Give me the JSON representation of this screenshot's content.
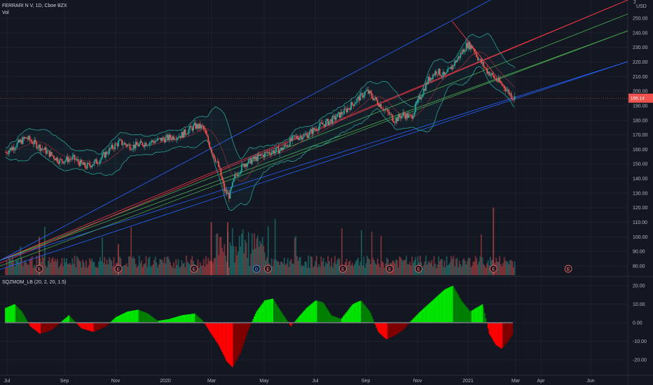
{
  "legend": {
    "symbol_line": "FERRARI N V, 1D, Cboe BZX",
    "volume_label": "Vol",
    "indicator_label": "SQZMOM_LB (20, 2, 20, 1.5)"
  },
  "price_axis": {
    "currency": "USD",
    "ticks": [
      "250.00",
      "240.00",
      "230.00",
      "220.00",
      "210.00",
      "200.00",
      "190.00",
      "180.00",
      "170.00",
      "160.00",
      "150.00",
      "140.00",
      "130.00",
      "120.00",
      "110.00",
      "100.00",
      "90.00",
      "80.00"
    ],
    "current_price": 195.14,
    "top_partial": "2"
  },
  "indicator_axis": {
    "ticks": [
      "20.00",
      "10.00",
      "0.00",
      "-10.00",
      "-20.00"
    ]
  },
  "time_axis": {
    "ticks": [
      "Jul",
      "Sep",
      "Nov",
      "2020",
      "Mar",
      "May",
      "Jul",
      "Sep",
      "Nov",
      "2021",
      "Mar",
      "Apr",
      "Jun"
    ]
  },
  "events": [
    {
      "label": "E",
      "kind": "earnings",
      "date": "2019-07-31"
    },
    {
      "label": "E",
      "kind": "earnings",
      "date": "2019-11-04"
    },
    {
      "label": "E",
      "kind": "earnings",
      "date": "2020-02-04"
    },
    {
      "label": "D",
      "kind": "dividend",
      "date": "2020-04-20"
    },
    {
      "label": "E",
      "kind": "earnings",
      "date": "2020-05-04"
    },
    {
      "label": "E",
      "kind": "earnings",
      "date": "2020-08-03"
    },
    {
      "label": "E",
      "kind": "earnings",
      "date": "2020-09-29"
    },
    {
      "label": "E",
      "kind": "earnings",
      "date": "2020-11-03"
    },
    {
      "label": "E",
      "kind": "earnings",
      "date": "2021-02-02"
    },
    {
      "label": "E",
      "kind": "earnings",
      "date": "2021-05-04"
    }
  ],
  "colors": {
    "background": "#131722",
    "up": "#26a69a",
    "down": "#ef5350",
    "vol_up": "#26a69a",
    "vol_down": "#ef5350",
    "bollinger": "#2aa198",
    "fan_blue": "#2962ff",
    "fan_green": "#4caf50",
    "fan_red": "#f23645",
    "hist_green_strong": "#00e600",
    "hist_green_weak": "#008000",
    "hist_red_strong": "#ff0000",
    "hist_red_weak": "#800000",
    "grid": "#1e222d",
    "price_tag": "#ef5350"
  },
  "chart_data": [
    {
      "type": "line",
      "subtype": "candlestick",
      "title": "FERRARI N V, 1D, Cboe BZX",
      "ylim": [
        75,
        260
      ],
      "x_range": [
        "2019-06-20",
        "2021-06-30"
      ],
      "series": [
        {
          "name": "",
          "points": [
            [
              "2019-06-20",
              158
            ],
            [
              "2019-07-15",
              168
            ],
            [
              "2019-08-05",
              160
            ],
            [
              "2019-08-25",
              152
            ],
            [
              "2019-09-10",
              154
            ],
            [
              "2019-09-25",
              148
            ],
            [
              "2019-10-10",
              152
            ],
            [
              "2019-10-25",
              160
            ],
            [
              "2019-11-05",
              165
            ],
            [
              "2019-11-20",
              162
            ],
            [
              "2019-12-05",
              164
            ],
            [
              "2019-12-20",
              166
            ],
            [
              "2020-01-05",
              168
            ],
            [
              "2020-01-20",
              170
            ],
            [
              "2020-02-05",
              176
            ],
            [
              "2020-02-15",
              175
            ],
            [
              "2020-02-25",
              160
            ],
            [
              "2020-03-05",
              148
            ],
            [
              "2020-03-12",
              132
            ],
            [
              "2020-03-18",
              128
            ],
            [
              "2020-03-25",
              142
            ],
            [
              "2020-04-05",
              150
            ],
            [
              "2020-04-20",
              154
            ],
            [
              "2020-05-05",
              158
            ],
            [
              "2020-05-20",
              160
            ],
            [
              "2020-06-05",
              168
            ],
            [
              "2020-06-20",
              170
            ],
            [
              "2020-07-05",
              176
            ],
            [
              "2020-07-20",
              180
            ],
            [
              "2020-08-05",
              186
            ],
            [
              "2020-08-20",
              194
            ],
            [
              "2020-09-01",
              200
            ],
            [
              "2020-09-15",
              192
            ],
            [
              "2020-09-25",
              186
            ],
            [
              "2020-10-05",
              180
            ],
            [
              "2020-10-15",
              184
            ],
            [
              "2020-10-25",
              182
            ],
            [
              "2020-11-05",
              196
            ],
            [
              "2020-11-15",
              208
            ],
            [
              "2020-11-25",
              214
            ],
            [
              "2020-12-05",
              210
            ],
            [
              "2020-12-15",
              218
            ],
            [
              "2020-12-25",
              226
            ],
            [
              "2021-01-01",
              232
            ],
            [
              "2021-01-08",
              230
            ],
            [
              "2021-01-15",
              222
            ],
            [
              "2021-01-25",
              214
            ],
            [
              "2021-02-05",
              208
            ],
            [
              "2021-02-15",
              203
            ],
            [
              "2021-02-25",
              196
            ],
            [
              "2021-03-01",
              195
            ]
          ]
        }
      ],
      "volume_peak": 120,
      "ylabel": ""
    },
    {
      "type": "bar",
      "title": "SQZMOM_LB (20, 2, 20, 1.5)",
      "ylim": [
        -25,
        22
      ],
      "series": [
        {
          "name": "",
          "points": [
            [
              "2019-06-20",
              8
            ],
            [
              "2019-07-01",
              10
            ],
            [
              "2019-07-10",
              6
            ],
            [
              "2019-07-20",
              -2
            ],
            [
              "2019-08-01",
              -6
            ],
            [
              "2019-08-15",
              -4
            ],
            [
              "2019-08-28",
              1
            ],
            [
              "2019-09-05",
              4
            ],
            [
              "2019-09-20",
              -3
            ],
            [
              "2019-10-05",
              -5
            ],
            [
              "2019-10-20",
              -2
            ],
            [
              "2019-11-01",
              3
            ],
            [
              "2019-11-15",
              6
            ],
            [
              "2019-11-28",
              7
            ],
            [
              "2019-12-10",
              5
            ],
            [
              "2019-12-22",
              1
            ],
            [
              "2020-01-05",
              2
            ],
            [
              "2020-01-20",
              4
            ],
            [
              "2020-02-05",
              5
            ],
            [
              "2020-02-15",
              1
            ],
            [
              "2020-02-25",
              -6
            ],
            [
              "2020-03-05",
              -12
            ],
            [
              "2020-03-15",
              -21
            ],
            [
              "2020-03-22",
              -24
            ],
            [
              "2020-04-01",
              -16
            ],
            [
              "2020-04-10",
              -4
            ],
            [
              "2020-04-20",
              6
            ],
            [
              "2020-04-30",
              12
            ],
            [
              "2020-05-10",
              13
            ],
            [
              "2020-05-20",
              6
            ],
            [
              "2020-06-01",
              -2
            ],
            [
              "2020-06-10",
              3
            ],
            [
              "2020-06-20",
              8
            ],
            [
              "2020-07-01",
              12
            ],
            [
              "2020-07-10",
              11
            ],
            [
              "2020-07-20",
              4
            ],
            [
              "2020-08-01",
              2
            ],
            [
              "2020-08-15",
              10
            ],
            [
              "2020-08-25",
              12
            ],
            [
              "2020-09-05",
              6
            ],
            [
              "2020-09-15",
              -5
            ],
            [
              "2020-09-25",
              -9
            ],
            [
              "2020-10-05",
              -7
            ],
            [
              "2020-10-15",
              -4
            ],
            [
              "2020-10-25",
              1
            ],
            [
              "2020-11-05",
              6
            ],
            [
              "2020-11-15",
              10
            ],
            [
              "2020-11-25",
              14
            ],
            [
              "2020-12-05",
              18
            ],
            [
              "2020-12-15",
              20
            ],
            [
              "2020-12-25",
              12
            ],
            [
              "2021-01-05",
              6
            ],
            [
              "2021-01-12",
              8
            ],
            [
              "2021-01-20",
              10
            ],
            [
              "2021-01-28",
              -6
            ],
            [
              "2021-02-05",
              -12
            ],
            [
              "2021-02-12",
              -14
            ],
            [
              "2021-02-20",
              -10
            ],
            [
              "2021-02-26",
              -6
            ]
          ]
        }
      ],
      "ylabel": ""
    }
  ]
}
